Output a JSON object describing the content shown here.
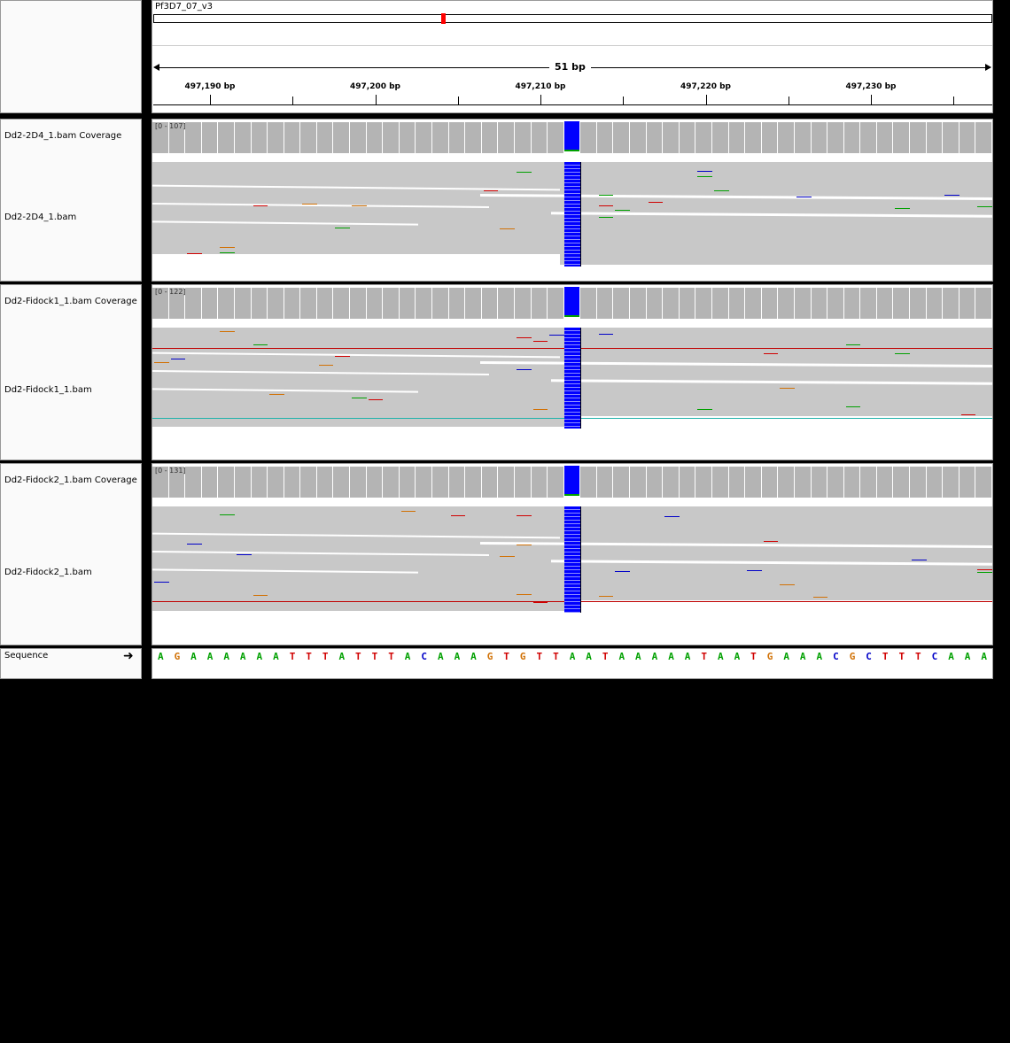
{
  "ruler": {
    "chromosome": "Pf3D7_07_v3",
    "span_label": "51 bp",
    "ticks": [
      "497,190 bp",
      "497,200 bp",
      "497,210 bp",
      "497,220 bp",
      "497,230 bp"
    ]
  },
  "tracks": [
    {
      "coverage_name": "Dd2-2D4_1.bam Coverage",
      "coverage_range": "[0 - 107]",
      "alignment_name": "Dd2-2D4_1.bam"
    },
    {
      "coverage_name": "Dd2-Fidock1_1.bam Coverage",
      "coverage_range": "[0 - 122]",
      "alignment_name": "Dd2-Fidock1_1.bam"
    },
    {
      "coverage_name": "Dd2-Fidock2_1.bam Coverage",
      "coverage_range": "[0 - 131]",
      "alignment_name": "Dd2-Fidock2_1.bam"
    }
  ],
  "sequence": {
    "label": "Sequence",
    "strand_icon": "right-arrow-icon",
    "bases": "AGAAAAAATTTATTTACAAAGTGTTAATAAAAATAATGAAACGCTTTCAAA"
  },
  "colors": {
    "A": "#00a000",
    "C": "#0000c8",
    "G": "#d17105",
    "T": "#d00000",
    "coverage_bar": "#b4b4b4",
    "read": "#c8c8c8",
    "insertion_column": "#0000ff",
    "cytoband_marker": "#ff0000"
  }
}
